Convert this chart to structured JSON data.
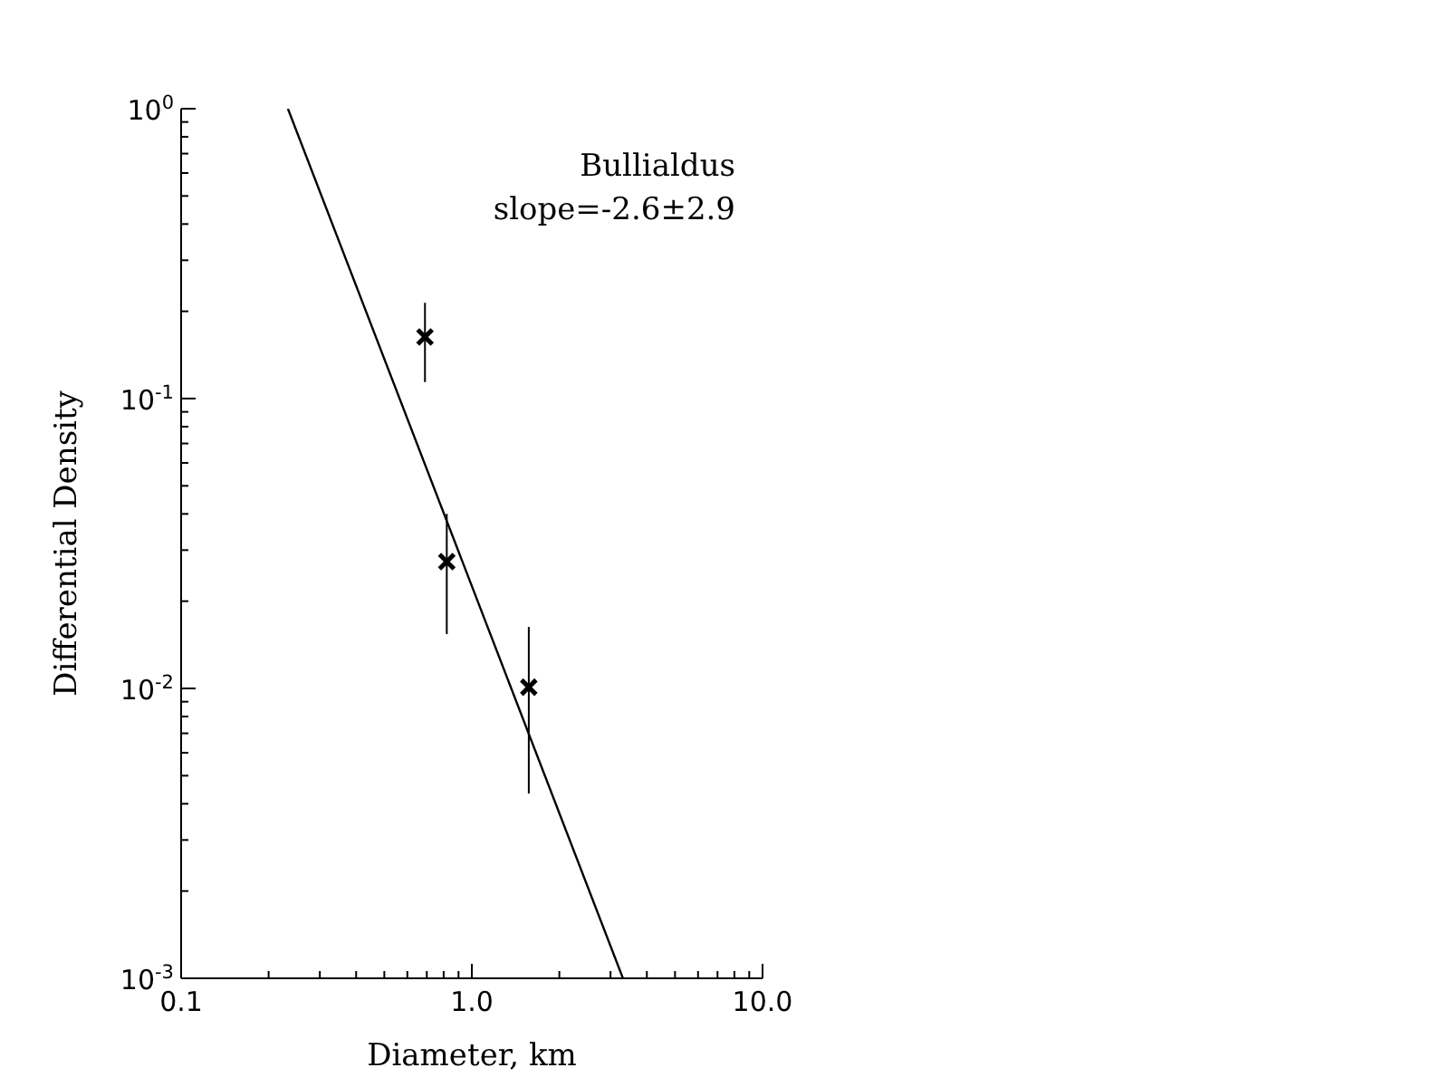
{
  "chart_data": {
    "type": "scatter",
    "xlabel": "Diameter, km",
    "ylabel": "Differential Density",
    "annotations": [
      "Bullialdus",
      "slope=-2.6±2.9"
    ],
    "log": "xy",
    "xlim": [
      0.1,
      10
    ],
    "ylim": [
      0.001,
      1
    ],
    "xticks": [
      {
        "value": 0.1,
        "label": "0.1"
      },
      {
        "value": 0.2,
        "label": null
      },
      {
        "value": 0.3,
        "label": null
      },
      {
        "value": 0.4,
        "label": null
      },
      {
        "value": 0.5,
        "label": null
      },
      {
        "value": 0.6,
        "label": null
      },
      {
        "value": 0.7,
        "label": null
      },
      {
        "value": 0.8,
        "label": null
      },
      {
        "value": 0.9,
        "label": null
      },
      {
        "value": 1,
        "label": "1.0"
      },
      {
        "value": 2,
        "label": null
      },
      {
        "value": 3,
        "label": null
      },
      {
        "value": 4,
        "label": null
      },
      {
        "value": 5,
        "label": null
      },
      {
        "value": 6,
        "label": null
      },
      {
        "value": 7,
        "label": null
      },
      {
        "value": 8,
        "label": null
      },
      {
        "value": 9,
        "label": null
      },
      {
        "value": 10,
        "label": "10.0"
      }
    ],
    "yticks": [
      {
        "value": 0.001,
        "label": "10$^{-3}$"
      },
      {
        "value": 0.002,
        "label": null
      },
      {
        "value": 0.003,
        "label": null
      },
      {
        "value": 0.004,
        "label": null
      },
      {
        "value": 0.005,
        "label": null
      },
      {
        "value": 0.006,
        "label": null
      },
      {
        "value": 0.007,
        "label": null
      },
      {
        "value": 0.008,
        "label": null
      },
      {
        "value": 0.009,
        "label": null
      },
      {
        "value": 0.01,
        "label": "10$^{-2}$"
      },
      {
        "value": 0.02,
        "label": null
      },
      {
        "value": 0.03,
        "label": null
      },
      {
        "value": 0.04,
        "label": null
      },
      {
        "value": 0.05,
        "label": null
      },
      {
        "value": 0.06,
        "label": null
      },
      {
        "value": 0.07,
        "label": null
      },
      {
        "value": 0.08,
        "label": null
      },
      {
        "value": 0.09,
        "label": null
      },
      {
        "value": 0.1,
        "label": "10$^{-1}$"
      },
      {
        "value": 0.2,
        "label": null
      },
      {
        "value": 0.3,
        "label": null
      },
      {
        "value": 0.4,
        "label": null
      },
      {
        "value": 0.5,
        "label": null
      },
      {
        "value": 0.6,
        "label": null
      },
      {
        "value": 0.7,
        "label": null
      },
      {
        "value": 0.8,
        "label": null
      },
      {
        "value": 0.9,
        "label": null
      },
      {
        "value": 1,
        "label": "10$^{0}$"
      }
    ],
    "series": [
      {
        "marker": "cross",
        "color": "#000000",
        "x": [
          0.69,
          0.82,
          1.57
        ],
        "values": [
          0.163,
          0.0274,
          0.0101
        ],
        "errors": [
          [
            0.114,
            0.214
          ],
          [
            0.0154,
            0.04
          ],
          [
            0.00434,
            0.0163
          ]
        ]
      },
      {
        "type": "line",
        "marker": "none",
        "color": "#000000",
        "x": [
          0.233,
          3.31
        ],
        "values": [
          1,
          0.001
        ]
      }
    ]
  }
}
